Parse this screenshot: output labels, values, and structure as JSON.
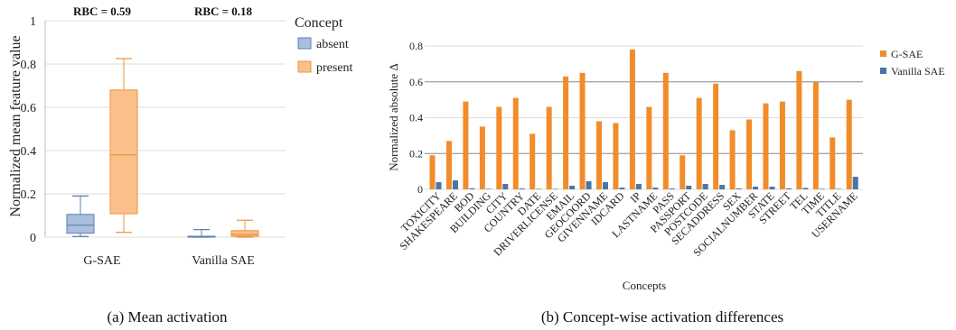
{
  "colors": {
    "absent_fill": "#a9bfdb",
    "absent_stroke": "#5a7fb0",
    "present_fill": "#f9c08c",
    "present_stroke": "#f0923a",
    "gsae_bar": "#f28c2a",
    "vanilla_bar": "#4a75a8",
    "grid_light": "#dddddd",
    "grid_dark": "#888888"
  },
  "chart_data": [
    {
      "type": "box",
      "caption": "(a) Mean activation",
      "ylabel": "Normalized mean feature value",
      "ylim": [
        0,
        1
      ],
      "yticks": [
        0,
        0.2,
        0.4,
        0.6,
        0.8,
        1
      ],
      "ytick_labels": [
        "0",
        "0.2",
        "0.4",
        "0.6",
        "0.8",
        "1"
      ],
      "categories": [
        "G-SAE",
        "Vanilla SAE"
      ],
      "legend": {
        "title": "Concept",
        "position": "right",
        "entries": [
          "absent",
          "present"
        ]
      },
      "annotations": [
        "RBC = 0.59",
        "RBC = 0.18"
      ],
      "series": [
        {
          "name": "absent",
          "boxes": [
            {
              "min": 0.003,
              "q1": 0.018,
              "median": 0.055,
              "q3": 0.105,
              "max": 0.19
            },
            {
              "min": 0.0,
              "q1": 0.0,
              "median": 0.002,
              "q3": 0.004,
              "max": 0.035
            }
          ]
        },
        {
          "name": "present",
          "boxes": [
            {
              "min": 0.022,
              "q1": 0.108,
              "median": 0.38,
              "q3": 0.68,
              "max": 0.825
            },
            {
              "min": 0.0,
              "q1": 0.004,
              "median": 0.012,
              "q3": 0.03,
              "max": 0.078
            }
          ]
        }
      ]
    },
    {
      "type": "bar",
      "caption": "(b) Concept-wise activation differences",
      "xlabel": "Concepts",
      "ylabel": "Normalized absolute Δ",
      "ylim": [
        0,
        0.8
      ],
      "yticks": [
        0,
        0.2,
        0.4,
        0.6,
        0.8
      ],
      "ytick_labels": [
        "0",
        "0.2",
        "0.4",
        "0.6",
        "0.8"
      ],
      "grid": true,
      "legend_position": "top-right",
      "categories": [
        "TOXICITY",
        "SHAKESPEARE",
        "BOD",
        "BUILDING",
        "CITY",
        "COUNTRY",
        "DATE",
        "DRIVERLICENSE",
        "EMAIL",
        "GEOCOORD",
        "GIVENNAME",
        "IDCARD",
        "IP",
        "LASTNAME",
        "PASS",
        "PASSPORT",
        "POSTCODE",
        "SECADDRESS",
        "SEX",
        "SOCIALNUMBER",
        "STATE",
        "STREET",
        "TEL",
        "TIME",
        "TITLE",
        "USERNAME"
      ],
      "series": [
        {
          "name": "G-SAE",
          "values": [
            0.19,
            0.27,
            0.49,
            0.35,
            0.46,
            0.51,
            0.31,
            0.46,
            0.63,
            0.65,
            0.38,
            0.37,
            0.78,
            0.46,
            0.65,
            0.19,
            0.51,
            0.59,
            0.33,
            0.39,
            0.48,
            0.49,
            0.66,
            0.6,
            0.29,
            0.5
          ]
        },
        {
          "name": "Vanilla SAE",
          "values": [
            0.04,
            0.05,
            0.006,
            0.003,
            0.03,
            0.005,
            0.003,
            0.003,
            0.02,
            0.045,
            0.04,
            0.01,
            0.03,
            0.01,
            0.005,
            0.02,
            0.03,
            0.025,
            0.005,
            0.015,
            0.015,
            0.005,
            0.008,
            0.003,
            0.003,
            0.07
          ]
        }
      ]
    }
  ]
}
